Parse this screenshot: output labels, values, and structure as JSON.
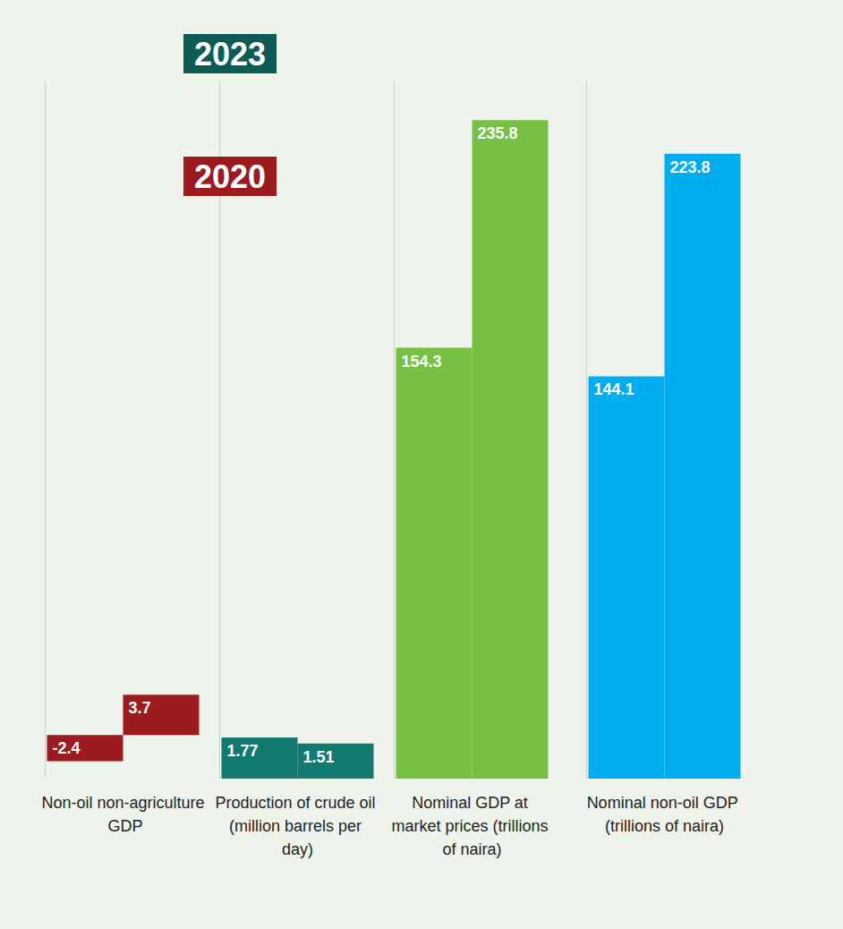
{
  "annotations": [
    {
      "text": "2023",
      "color": "#0e5a55"
    },
    {
      "text": "2020",
      "color": "#9b1b1f"
    }
  ],
  "chart_data": [
    {
      "type": "bar",
      "categories": [
        "Non-oil non-agriculture GDP"
      ],
      "series": [
        {
          "values": [
            -2.4
          ]
        },
        {
          "values": [
            3.7
          ]
        }
      ],
      "color": "#9b1b1f",
      "ylim": [
        -4,
        60
      ],
      "data_labels": true,
      "tick_labels": "x"
    },
    {
      "type": "bar",
      "categories": [
        "Production of crude oil (million barrels per day)"
      ],
      "series": [
        {
          "values": [
            1.77
          ]
        },
        {
          "values": [
            1.51
          ]
        }
      ],
      "color": "#137a72",
      "ylim": [
        0,
        30
      ],
      "data_labels": true,
      "tick_labels": "x"
    },
    {
      "type": "bar",
      "categories": [
        "Nominal GDP at market prices (trillions of naira)"
      ],
      "series": [
        {
          "values": [
            154.3
          ]
        },
        {
          "values": [
            235.8
          ]
        }
      ],
      "color": "#76c043",
      "ylim": [
        0,
        250
      ],
      "data_labels": true,
      "tick_labels": "x"
    },
    {
      "type": "bar",
      "categories": [
        "Nominal non-oil GDP (trillions of naira)"
      ],
      "series": [
        {
          "values": [
            144.1
          ]
        },
        {
          "values": [
            223.8
          ]
        }
      ],
      "color": "#00aeef",
      "ylim": [
        0,
        250
      ],
      "data_labels": true,
      "tick_labels": "x"
    }
  ]
}
